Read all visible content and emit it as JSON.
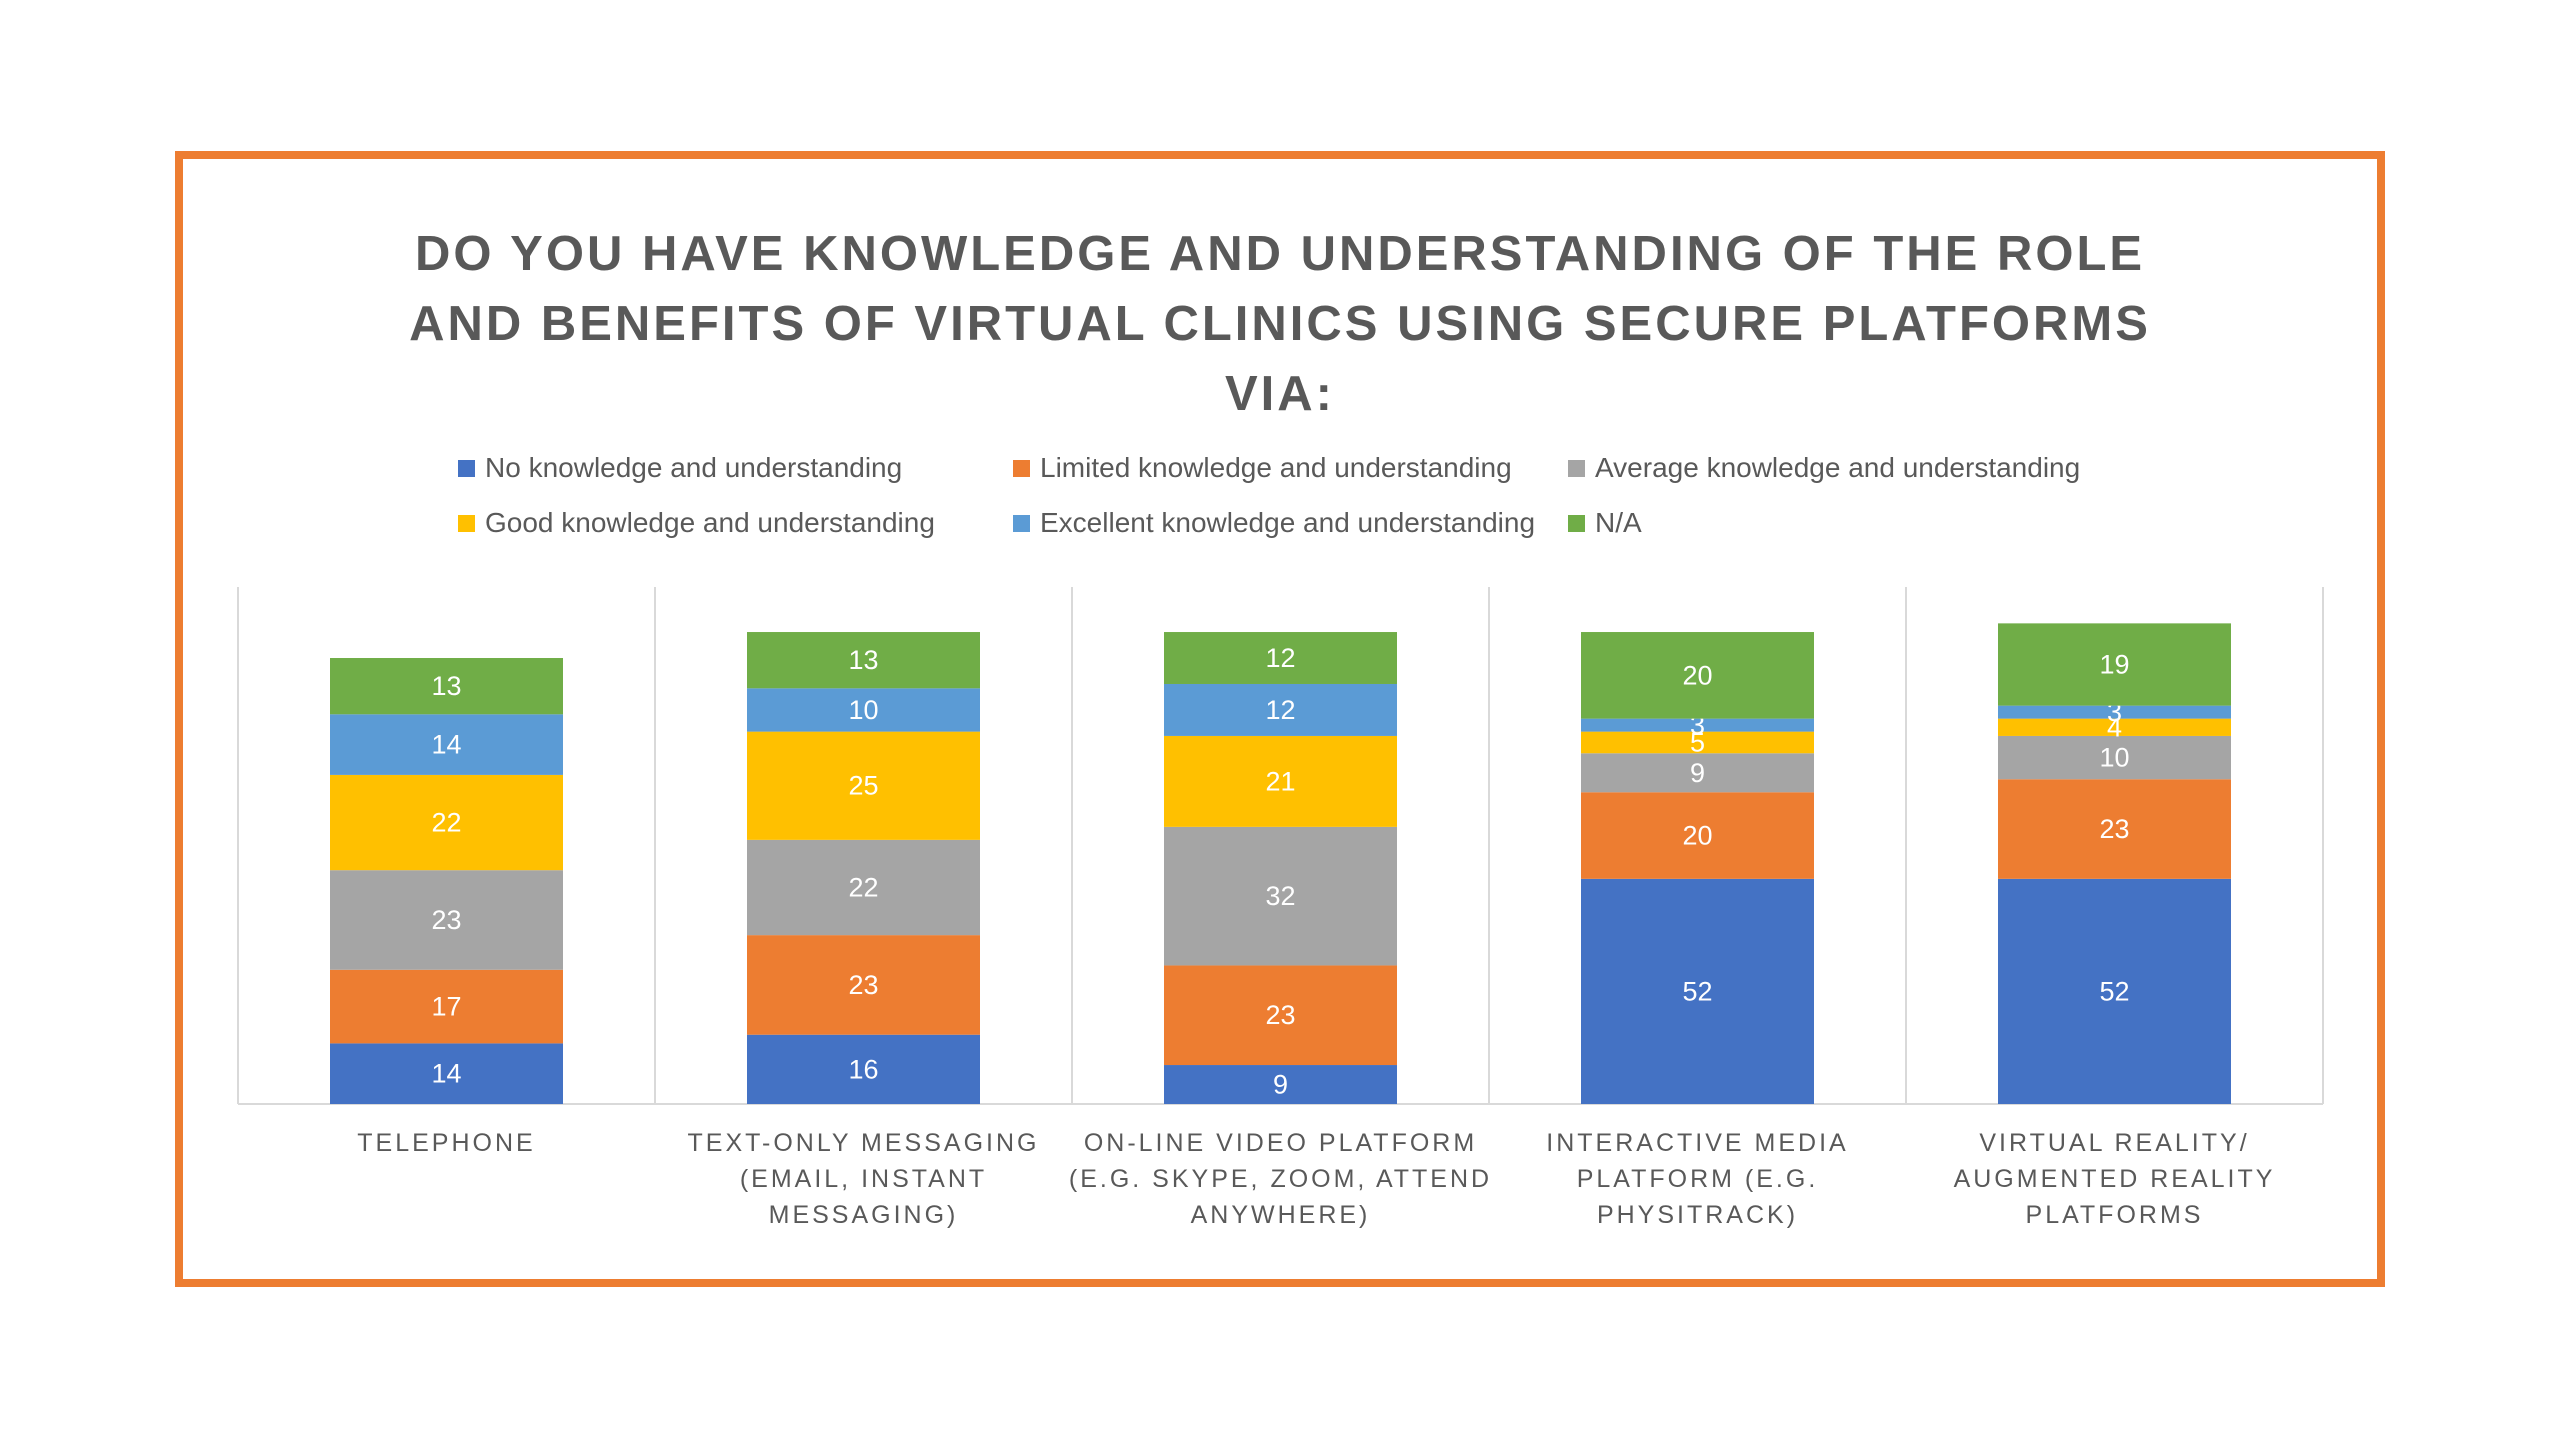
{
  "chart_data": {
    "type": "bar",
    "stacked": true,
    "title": "DO YOU HAVE KNOWLEDGE AND UNDERSTANDING OF THE ROLE AND BENEFITS OF VIRTUAL CLINICS USING SECURE PLATFORMS VIA:",
    "title_lines": [
      "DO YOU HAVE KNOWLEDGE AND UNDERSTANDING OF THE ROLE",
      "AND BENEFITS OF VIRTUAL CLINICS USING SECURE PLATFORMS",
      "VIA:"
    ],
    "categories": [
      [
        "TELEPHONE"
      ],
      [
        "TEXT-ONLY MESSAGING",
        "(EMAIL, INSTANT",
        "MESSAGING)"
      ],
      [
        "ON-LINE VIDEO PLATFORM",
        "(E.G. SKYPE, ZOOM, ATTEND",
        "ANYWHERE)"
      ],
      [
        "INTERACTIVE MEDIA",
        "PLATFORM (E.G.",
        "PHYSITRACK)"
      ],
      [
        "VIRTUAL REALITY/",
        "AUGMENTED REALITY",
        "PLATFORMS"
      ]
    ],
    "series": [
      {
        "name": "No knowledge and understanding",
        "color": "#4472C4",
        "values": [
          14,
          16,
          9,
          52,
          52
        ]
      },
      {
        "name": "Limited knowledge and understanding",
        "color": "#ED7D31",
        "values": [
          17,
          23,
          23,
          20,
          23
        ]
      },
      {
        "name": "Average knowledge and understanding",
        "color": "#A5A5A5",
        "values": [
          23,
          22,
          32,
          9,
          10
        ]
      },
      {
        "name": "Good knowledge and understanding",
        "color": "#FFC000",
        "values": [
          22,
          25,
          21,
          5,
          4
        ]
      },
      {
        "name": "Excellent knowledge and understanding",
        "color": "#5B9BD5",
        "values": [
          14,
          10,
          12,
          3,
          3
        ]
      },
      {
        "name": "N/A",
        "color": "#70AD47",
        "values": [
          13,
          13,
          12,
          20,
          19
        ]
      }
    ],
    "ylim": [
      0,
      120
    ],
    "grid": false,
    "legend_position": "top",
    "data_labels": true
  },
  "colors": {
    "frame_border": "#ED7D31",
    "text": "#595959",
    "axis": "#D9D9D9"
  }
}
